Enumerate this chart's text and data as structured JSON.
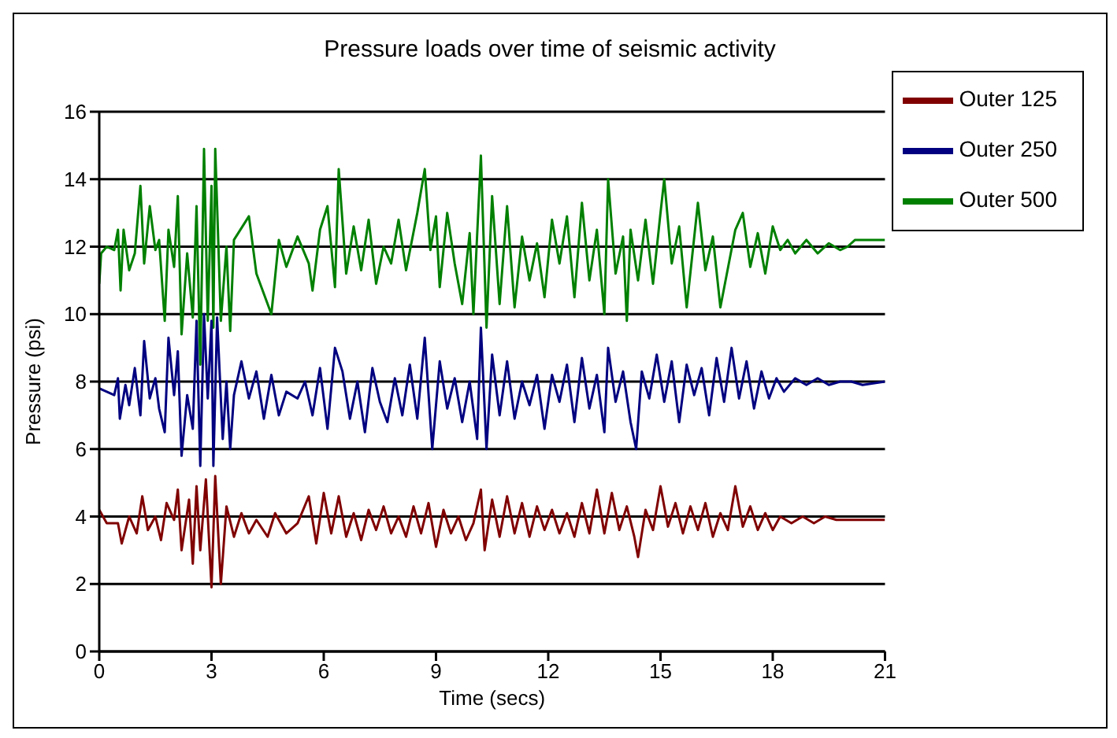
{
  "chart_data": {
    "type": "line",
    "title": "Pressure loads over time of seismic activity",
    "xlabel": "Time (secs)",
    "ylabel": "Pressure (psi)",
    "xlim": [
      0,
      21
    ],
    "xticks": [
      0,
      3,
      6,
      9,
      12,
      15,
      18,
      21
    ],
    "ylim": [
      0,
      16
    ],
    "yticks": [
      0,
      2,
      4,
      6,
      8,
      10,
      12,
      14,
      16
    ],
    "grid": "y",
    "legend": "top right",
    "marker": "none",
    "line_style": "solid",
    "series": [
      {
        "name": "Outer 500",
        "color": "#008000",
        "x": [
          0,
          0.05,
          0.2,
          0.4,
          0.5,
          0.57,
          0.65,
          0.8,
          0.95,
          1.1,
          1.2,
          1.35,
          1.5,
          1.6,
          1.75,
          1.85,
          2.0,
          2.1,
          2.2,
          2.35,
          2.5,
          2.6,
          2.7,
          2.8,
          2.9,
          3.0,
          3.05,
          3.1,
          3.25,
          3.4,
          3.5,
          3.6,
          4.0,
          4.2,
          4.6,
          4.8,
          5.0,
          5.3,
          5.6,
          5.7,
          5.9,
          6.1,
          6.3,
          6.4,
          6.6,
          6.8,
          7.0,
          7.2,
          7.4,
          7.6,
          7.8,
          8.0,
          8.2,
          8.5,
          8.7,
          8.85,
          9.0,
          9.1,
          9.3,
          9.5,
          9.7,
          9.9,
          10.0,
          10.2,
          10.35,
          10.5,
          10.7,
          10.9,
          11.1,
          11.3,
          11.5,
          11.7,
          11.9,
          12.1,
          12.3,
          12.5,
          12.7,
          12.9,
          13.1,
          13.3,
          13.5,
          13.6,
          13.8,
          14.0,
          14.1,
          14.2,
          14.4,
          14.6,
          14.8,
          15.0,
          15.1,
          15.3,
          15.5,
          15.7,
          16.0,
          16.2,
          16.4,
          16.6,
          17.0,
          17.2,
          17.4,
          17.6,
          17.8,
          18.0,
          18.2,
          18.4,
          18.6,
          18.9,
          19.2,
          19.5,
          19.8,
          20.0,
          20.2,
          20.4,
          21.0
        ],
        "values": [
          10.9,
          11.8,
          12.0,
          11.9,
          12.5,
          10.7,
          12.5,
          11.3,
          11.8,
          13.8,
          11.5,
          13.2,
          11.9,
          12.2,
          9.8,
          12.5,
          11.4,
          13.5,
          9.4,
          11.8,
          9.9,
          13.2,
          8.5,
          14.9,
          9.8,
          13.8,
          9.6,
          14.9,
          9.8,
          12.0,
          9.5,
          12.2,
          12.9,
          11.2,
          10.0,
          12.2,
          11.4,
          12.3,
          11.5,
          10.7,
          12.5,
          13.2,
          10.8,
          14.3,
          11.2,
          12.6,
          11.3,
          12.8,
          10.9,
          12.0,
          11.5,
          12.8,
          11.3,
          13.0,
          14.3,
          11.9,
          12.9,
          10.8,
          13.0,
          11.5,
          10.3,
          12.4,
          10.0,
          14.7,
          9.6,
          13.5,
          10.3,
          13.2,
          10.2,
          12.3,
          11.0,
          12.1,
          10.5,
          12.8,
          11.5,
          12.9,
          10.5,
          13.3,
          11.0,
          12.5,
          10.0,
          14.0,
          11.2,
          12.3,
          9.8,
          12.5,
          11.0,
          12.8,
          10.9,
          13.0,
          14.0,
          11.5,
          12.6,
          10.2,
          13.3,
          11.3,
          12.3,
          10.2,
          12.5,
          13.0,
          11.4,
          12.4,
          11.2,
          12.6,
          11.9,
          12.2,
          11.8,
          12.2,
          11.8,
          12.1,
          11.9,
          12.0,
          12.2,
          12.2,
          12.2
        ]
      },
      {
        "name": "Outer 250",
        "color": "#000080",
        "x": [
          0,
          0.2,
          0.4,
          0.5,
          0.55,
          0.7,
          0.8,
          0.95,
          1.1,
          1.2,
          1.35,
          1.5,
          1.6,
          1.75,
          1.85,
          2.0,
          2.1,
          2.2,
          2.35,
          2.5,
          2.6,
          2.7,
          2.8,
          2.9,
          3.0,
          3.05,
          3.15,
          3.3,
          3.4,
          3.5,
          3.6,
          3.8,
          4.0,
          4.2,
          4.4,
          4.6,
          4.8,
          5.0,
          5.3,
          5.5,
          5.7,
          5.9,
          6.1,
          6.3,
          6.5,
          6.7,
          6.9,
          7.1,
          7.3,
          7.5,
          7.7,
          7.9,
          8.1,
          8.3,
          8.5,
          8.7,
          8.9,
          9.1,
          9.3,
          9.5,
          9.7,
          9.9,
          10.1,
          10.2,
          10.35,
          10.5,
          10.7,
          10.9,
          11.1,
          11.3,
          11.5,
          11.7,
          11.9,
          12.1,
          12.3,
          12.5,
          12.7,
          12.9,
          13.1,
          13.3,
          13.5,
          13.6,
          13.8,
          14.0,
          14.2,
          14.35,
          14.5,
          14.7,
          14.9,
          15.1,
          15.3,
          15.5,
          15.7,
          15.9,
          16.1,
          16.3,
          16.5,
          16.7,
          16.9,
          17.1,
          17.3,
          17.5,
          17.7,
          17.9,
          18.1,
          18.3,
          18.6,
          18.9,
          19.2,
          19.5,
          19.8,
          20.1,
          20.4,
          21.0
        ],
        "values": [
          7.8,
          7.7,
          7.6,
          8.1,
          6.9,
          7.9,
          7.3,
          8.4,
          7.0,
          9.2,
          7.5,
          8.1,
          7.2,
          6.5,
          9.3,
          7.6,
          8.9,
          5.8,
          7.6,
          6.6,
          9.8,
          5.5,
          10.0,
          7.5,
          9.8,
          5.5,
          9.9,
          6.3,
          8.0,
          6.0,
          7.6,
          8.6,
          7.5,
          8.3,
          6.9,
          8.2,
          7.0,
          7.7,
          7.5,
          8.0,
          7.0,
          8.4,
          6.6,
          9.0,
          8.3,
          6.9,
          8.0,
          6.5,
          8.4,
          7.4,
          6.8,
          8.1,
          7.0,
          8.5,
          6.9,
          9.3,
          6.0,
          8.6,
          7.2,
          8.1,
          6.8,
          8.0,
          6.3,
          9.6,
          6.0,
          8.8,
          7.0,
          8.6,
          6.9,
          8.0,
          7.3,
          8.2,
          6.6,
          8.2,
          7.4,
          8.5,
          6.8,
          8.7,
          7.2,
          8.2,
          6.5,
          9.0,
          7.4,
          8.3,
          6.8,
          6.0,
          8.3,
          7.5,
          8.8,
          7.4,
          8.6,
          6.8,
          8.5,
          7.6,
          8.4,
          7.0,
          8.7,
          7.4,
          9.0,
          7.5,
          8.6,
          7.2,
          8.3,
          7.5,
          8.1,
          7.7,
          8.1,
          7.9,
          8.1,
          7.9,
          8.0,
          8.0,
          7.9,
          8.0
        ]
      },
      {
        "name": "Outer 125",
        "color": "#800000",
        "x": [
          0,
          0.2,
          0.5,
          0.6,
          0.8,
          1.0,
          1.15,
          1.3,
          1.5,
          1.65,
          1.8,
          2.0,
          2.1,
          2.2,
          2.4,
          2.5,
          2.6,
          2.7,
          2.85,
          3.0,
          3.1,
          3.25,
          3.4,
          3.6,
          3.8,
          4.0,
          4.2,
          4.5,
          4.7,
          5.0,
          5.3,
          5.6,
          5.8,
          6.0,
          6.2,
          6.4,
          6.6,
          6.8,
          7.0,
          7.2,
          7.4,
          7.6,
          7.8,
          8.0,
          8.2,
          8.4,
          8.6,
          8.8,
          9.0,
          9.2,
          9.4,
          9.6,
          9.8,
          10.0,
          10.2,
          10.3,
          10.5,
          10.7,
          10.9,
          11.1,
          11.3,
          11.5,
          11.7,
          11.9,
          12.1,
          12.3,
          12.5,
          12.7,
          12.9,
          13.1,
          13.3,
          13.5,
          13.7,
          13.9,
          14.1,
          14.3,
          14.4,
          14.6,
          14.8,
          15.0,
          15.2,
          15.4,
          15.6,
          15.8,
          16.0,
          16.2,
          16.4,
          16.6,
          16.8,
          17.0,
          17.2,
          17.4,
          17.6,
          17.8,
          18.0,
          18.2,
          18.5,
          18.8,
          19.1,
          19.4,
          19.7,
          20.0,
          20.5,
          21.0
        ],
        "values": [
          4.2,
          3.8,
          3.8,
          3.2,
          4.0,
          3.5,
          4.6,
          3.6,
          4.0,
          3.3,
          4.4,
          3.9,
          4.8,
          3.0,
          4.5,
          2.6,
          4.9,
          3.0,
          5.1,
          1.9,
          5.2,
          2.0,
          4.3,
          3.4,
          4.1,
          3.5,
          3.9,
          3.4,
          4.1,
          3.5,
          3.8,
          4.6,
          3.2,
          4.7,
          3.5,
          4.6,
          3.4,
          4.1,
          3.3,
          4.2,
          3.6,
          4.3,
          3.5,
          4.0,
          3.4,
          4.3,
          3.5,
          4.4,
          3.1,
          4.2,
          3.5,
          4.0,
          3.3,
          3.8,
          4.8,
          3.0,
          4.5,
          3.4,
          4.6,
          3.5,
          4.4,
          3.4,
          4.3,
          3.6,
          4.2,
          3.5,
          4.1,
          3.4,
          4.4,
          3.5,
          4.8,
          3.5,
          4.7,
          3.6,
          4.3,
          3.4,
          2.8,
          4.2,
          3.6,
          4.9,
          3.7,
          4.4,
          3.5,
          4.3,
          3.6,
          4.4,
          3.4,
          4.1,
          3.6,
          4.9,
          3.7,
          4.3,
          3.6,
          4.1,
          3.6,
          4.0,
          3.8,
          4.0,
          3.8,
          4.0,
          3.9,
          3.9,
          3.9,
          3.9
        ]
      }
    ]
  }
}
